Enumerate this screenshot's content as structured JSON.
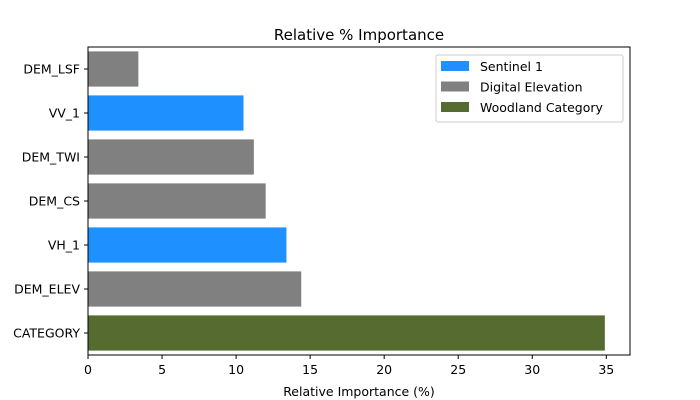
{
  "chart_data": {
    "type": "bar",
    "orientation": "horizontal",
    "title": "Relative % Importance",
    "xlabel": "Relative Importance (%)",
    "ylabel": "",
    "xlim": [
      0,
      36.6
    ],
    "xticks": [
      0,
      5,
      10,
      15,
      20,
      25,
      30,
      35
    ],
    "grid": false,
    "legend_position": "top-right",
    "categories": [
      "CATEGORY",
      "DEM_ELEV",
      "VH_1",
      "DEM_CS",
      "DEM_TWI",
      "VV_1",
      "DEM_LSF"
    ],
    "values": [
      34.9,
      14.4,
      13.4,
      12.0,
      11.2,
      10.5,
      3.4
    ],
    "bar_groups": [
      "Woodland Category",
      "Digital Elevation",
      "Sentinel 1",
      "Digital Elevation",
      "Digital Elevation",
      "Sentinel 1",
      "Digital Elevation"
    ],
    "legend": [
      {
        "name": "Sentinel 1",
        "color": "#1e90ff"
      },
      {
        "name": "Digital Elevation",
        "color": "#808080"
      },
      {
        "name": "Woodland Category",
        "color": "#556b2f"
      }
    ]
  }
}
